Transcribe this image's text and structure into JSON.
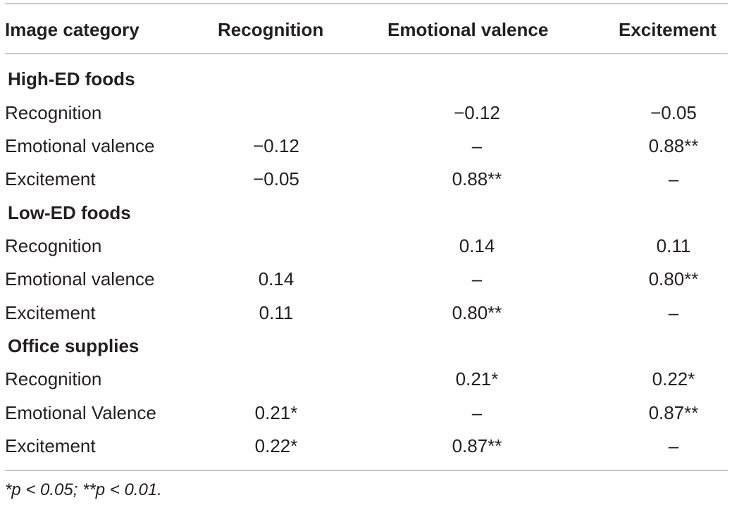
{
  "header": [
    "Image category",
    "Recognition",
    "Emotional valence",
    "Excitement"
  ],
  "sections": [
    {
      "title": "High-ED foods",
      "rows": [
        {
          "label": "Recognition",
          "recognition": "",
          "valence": "−0.12",
          "excitement": "−0.05"
        },
        {
          "label": "Emotional valence",
          "recognition": "−0.12",
          "valence": "–",
          "excitement": "0.88**"
        },
        {
          "label": "Excitement",
          "recognition": "−0.05",
          "valence": "0.88**",
          "excitement": "–"
        }
      ]
    },
    {
      "title": "Low-ED foods",
      "rows": [
        {
          "label": "Recognition",
          "recognition": "",
          "valence": "0.14",
          "excitement": "0.11"
        },
        {
          "label": "Emotional valence",
          "recognition": "0.14",
          "valence": "–",
          "excitement": "0.80**"
        },
        {
          "label": "Excitement",
          "recognition": "0.11",
          "valence": "0.80**",
          "excitement": "–"
        }
      ]
    },
    {
      "title": "Office supplies",
      "rows": [
        {
          "label": "Recognition",
          "recognition": "",
          "valence": "0.21*",
          "excitement": "0.22*"
        },
        {
          "label": "Emotional Valence",
          "recognition": "0.21*",
          "valence": "–",
          "excitement": "0.87**"
        },
        {
          "label": "Excitement",
          "recognition": "0.22*",
          "valence": "0.87**",
          "excitement": "–"
        }
      ]
    }
  ],
  "footnote": "*p < 0.05; **p < 0.01."
}
